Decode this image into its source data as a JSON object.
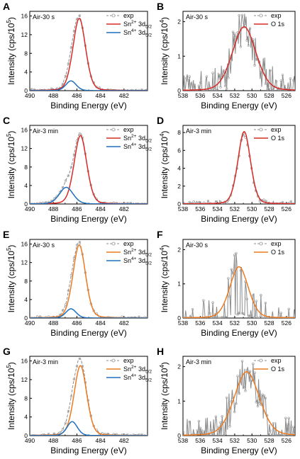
{
  "figure": {
    "panels": [
      "A",
      "B",
      "C",
      "D",
      "E",
      "F",
      "G",
      "H"
    ],
    "colors": {
      "exp": "#8c8c8c",
      "red": "#d62b27",
      "blue": "#1f6fbf",
      "orange": "#ec7b22"
    }
  },
  "chart_data": [
    {
      "panel": "A",
      "type": "line",
      "inset_label": "Air-30 s",
      "xlabel": "Binding Energy (eV)",
      "ylabel": "Intensity (cps/10^5)",
      "xlim": [
        490,
        480
      ],
      "ylim": [
        0,
        17
      ],
      "xticks": [
        490,
        488,
        486,
        484,
        482
      ],
      "yticks": [
        0,
        4,
        8,
        12,
        16
      ],
      "legend": [
        "exp",
        "Sn2+ 3d5/2",
        "Sn4+ 3d5/2"
      ],
      "series": [
        {
          "name": "exp",
          "style": "dash-open-circles",
          "peaks": [
            {
              "center": 485.8,
              "height": 15.5,
              "width": 0.55
            },
            {
              "center": 486.5,
              "height": 2.1,
              "width": 0.45
            }
          ],
          "noise": 0.25
        },
        {
          "name": "Sn2+ 3d5/2",
          "color": "red",
          "peaks": [
            {
              "center": 485.8,
              "height": 15.5,
              "width": 0.55
            }
          ]
        },
        {
          "name": "Sn4+ 3d5/2",
          "color": "blue",
          "peaks": [
            {
              "center": 486.5,
              "height": 2.1,
              "width": 0.45
            }
          ]
        }
      ]
    },
    {
      "panel": "B",
      "type": "line",
      "inset_label": "Air-30 s",
      "xlabel": "Binding Energy (eV)",
      "ylabel": "Intensity (cps/10^4)",
      "xlim": [
        538,
        525
      ],
      "ylim": [
        0,
        2.3
      ],
      "xticks": [
        538,
        536,
        534,
        532,
        530,
        528,
        526
      ],
      "yticks": [
        0,
        1,
        2
      ],
      "legend": [
        "exp",
        "O 1s"
      ],
      "series": [
        {
          "name": "exp",
          "style": "solid-open-circles",
          "peaks": [
            {
              "center": 530.9,
              "height": 1.85,
              "width": 1.4
            }
          ],
          "noise": 0.6
        },
        {
          "name": "O 1s",
          "color": "red",
          "peaks": [
            {
              "center": 530.9,
              "height": 1.85,
              "width": 1.4
            }
          ]
        }
      ]
    },
    {
      "panel": "C",
      "type": "line",
      "inset_label": "Air-3 min",
      "xlabel": "Binding Energy (eV)",
      "ylabel": "Intensity (cps/10^5)",
      "xlim": [
        490,
        480
      ],
      "ylim": [
        0,
        17
      ],
      "xticks": [
        490,
        488,
        486,
        484,
        482
      ],
      "yticks": [
        0,
        4,
        8,
        12,
        16
      ],
      "legend": [
        "exp",
        "Sn2+ 3d5/2",
        "Sn4+ 3d5/2"
      ],
      "series": [
        {
          "name": "exp",
          "style": "dash-open-circles",
          "peaks": [
            {
              "center": 485.7,
              "height": 14.8,
              "width": 0.55
            },
            {
              "center": 486.9,
              "height": 3.6,
              "width": 0.6
            }
          ],
          "noise": 0.2
        },
        {
          "name": "Sn2+ 3d5/2",
          "color": "red",
          "peaks": [
            {
              "center": 485.7,
              "height": 14.8,
              "width": 0.55
            }
          ]
        },
        {
          "name": "Sn4+ 3d5/2",
          "color": "blue",
          "peaks": [
            {
              "center": 486.9,
              "height": 3.6,
              "width": 0.6
            }
          ]
        }
      ]
    },
    {
      "panel": "D",
      "type": "line",
      "inset_label": "Air-3 min",
      "xlabel": "Binding Energy (eV)",
      "ylabel": "Intensity (cps/10^4)",
      "xlim": [
        538,
        525
      ],
      "ylim": [
        0,
        8.8
      ],
      "xticks": [
        538,
        536,
        534,
        532,
        530,
        528,
        526
      ],
      "yticks": [
        0,
        2,
        4,
        6,
        8
      ],
      "legend": [
        "exp",
        "O 1s"
      ],
      "series": [
        {
          "name": "exp",
          "style": "dash-open-circles",
          "peaks": [
            {
              "center": 530.9,
              "height": 7.9,
              "width": 0.75
            }
          ],
          "noise": 0.3
        },
        {
          "name": "O 1s",
          "color": "red",
          "peaks": [
            {
              "center": 530.9,
              "height": 8.1,
              "width": 0.75
            }
          ]
        }
      ]
    },
    {
      "panel": "E",
      "type": "line",
      "inset_label": "Air-30 s",
      "xlabel": "Binding Energy (eV)",
      "ylabel": "Intensity (cps/10^5)",
      "xlim": [
        490,
        480
      ],
      "ylim": [
        0,
        17
      ],
      "xticks": [
        490,
        488,
        486,
        484,
        482
      ],
      "yticks": [
        0,
        4,
        8,
        12,
        16
      ],
      "legend": [
        "exp",
        "Sn2+ 3d5/2",
        "Sn4+ 3d5/2"
      ],
      "series": [
        {
          "name": "exp",
          "style": "dash-open-circles",
          "peaks": [
            {
              "center": 485.8,
              "height": 15.8,
              "width": 0.55
            },
            {
              "center": 486.5,
              "height": 2.0,
              "width": 0.45
            }
          ],
          "noise": 0.25
        },
        {
          "name": "Sn2+ 3d5/2",
          "color": "orange",
          "peaks": [
            {
              "center": 485.8,
              "height": 15.8,
              "width": 0.55
            }
          ]
        },
        {
          "name": "Sn4+ 3d5/2",
          "color": "blue",
          "peaks": [
            {
              "center": 486.5,
              "height": 2.0,
              "width": 0.45
            }
          ]
        }
      ]
    },
    {
      "panel": "F",
      "type": "line",
      "inset_label": "Air-30 s",
      "xlabel": "Binding Energy (eV)",
      "ylabel": "Intensity (cps/10^4)",
      "xlim": [
        538,
        525
      ],
      "ylim": [
        0,
        2.3
      ],
      "xticks": [
        538,
        536,
        534,
        532,
        530,
        528,
        526
      ],
      "yticks": [
        0,
        1,
        2
      ],
      "legend": [
        "exp",
        "O 1s"
      ],
      "series": [
        {
          "name": "exp",
          "style": "solid-open-circles",
          "peaks": [
            {
              "center": 531.5,
              "height": 1.5,
              "width": 1.1
            }
          ],
          "noise": 0.55,
          "sparse": true
        },
        {
          "name": "O 1s",
          "color": "orange",
          "peaks": [
            {
              "center": 531.5,
              "height": 1.5,
              "width": 1.1
            }
          ]
        }
      ]
    },
    {
      "panel": "G",
      "type": "line",
      "inset_label": "Air-3 min",
      "xlabel": "Binding Energy (eV)",
      "ylabel": "Intensity (cps/10^5)",
      "xlim": [
        490,
        480
      ],
      "ylim": [
        0,
        17
      ],
      "xticks": [
        490,
        488,
        486,
        484,
        482
      ],
      "yticks": [
        0,
        4,
        8,
        12,
        16
      ],
      "legend": [
        "exp",
        "Sn2+ 3d5/2",
        "Sn4+ 3d5/2"
      ],
      "series": [
        {
          "name": "exp",
          "style": "dash-open-circles",
          "peaks": [
            {
              "center": 485.7,
              "height": 15.6,
              "width": 0.55
            },
            {
              "center": 486.4,
              "height": 3.0,
              "width": 0.45
            }
          ],
          "noise": 0.25
        },
        {
          "name": "Sn2+ 3d5/2",
          "color": "orange",
          "peaks": [
            {
              "center": 485.7,
              "height": 15.0,
              "width": 0.55
            }
          ]
        },
        {
          "name": "Sn4+ 3d5/2",
          "color": "blue",
          "peaks": [
            {
              "center": 486.4,
              "height": 3.0,
              "width": 0.45
            }
          ]
        }
      ]
    },
    {
      "panel": "H",
      "type": "line",
      "inset_label": "Air-3 min",
      "xlabel": "Binding Energy (eV)",
      "ylabel": "Intensity (cps/10^4)",
      "xlim": [
        538,
        525
      ],
      "ylim": [
        0,
        2.3
      ],
      "xticks": [
        538,
        536,
        534,
        532,
        530,
        528,
        526
      ],
      "yticks": [
        0,
        1,
        2
      ],
      "legend": [
        "exp",
        "O 1s"
      ],
      "series": [
        {
          "name": "exp",
          "style": "solid-open-circles",
          "peaks": [
            {
              "center": 530.6,
              "height": 1.85,
              "width": 1.5
            }
          ],
          "noise": 0.55
        },
        {
          "name": "O 1s",
          "color": "orange",
          "peaks": [
            {
              "center": 530.6,
              "height": 1.85,
              "width": 1.5
            }
          ]
        }
      ]
    }
  ]
}
